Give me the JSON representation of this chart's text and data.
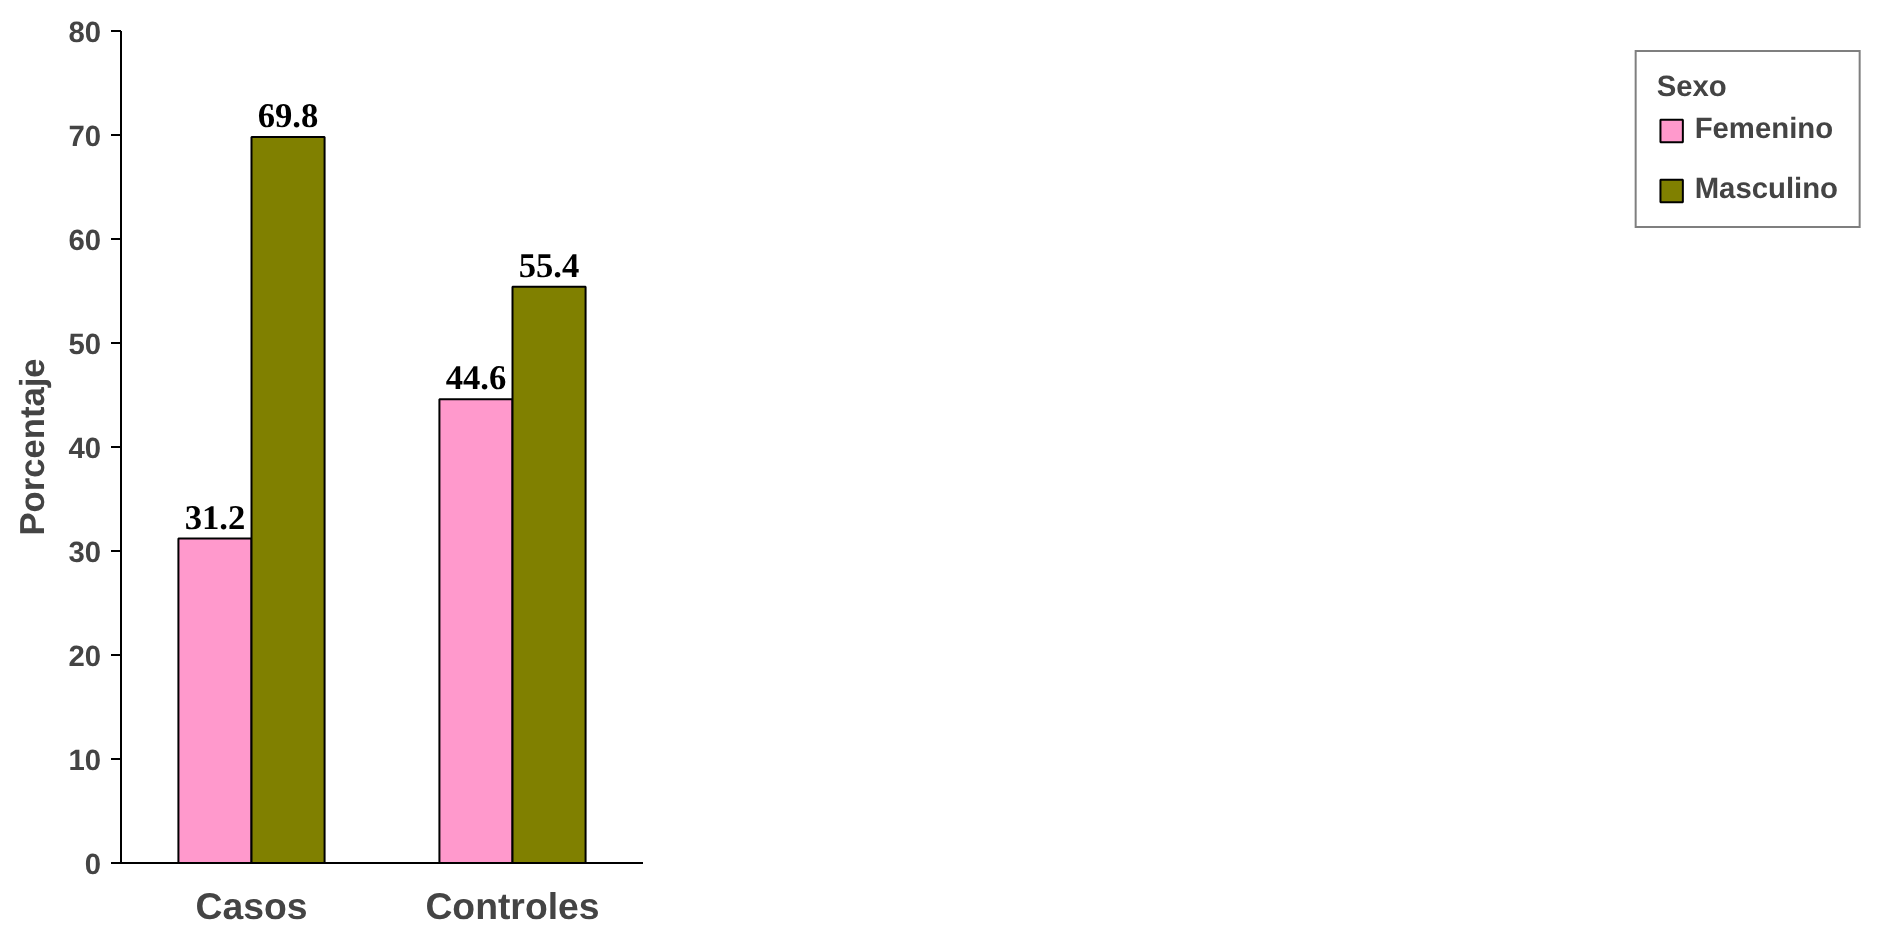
{
  "chart_data": {
    "type": "bar",
    "ylabel": "Porcentaje",
    "legend_title": "Sexo",
    "categories": [
      "Casos",
      "Controles"
    ],
    "series": [
      {
        "name": "Femenino",
        "color": "#ff99cc",
        "values": [
          31.2,
          44.6
        ]
      },
      {
        "name": "Masculino",
        "color": "#808000",
        "values": [
          69.8,
          55.4
        ]
      }
    ],
    "ylim": [
      0,
      80
    ],
    "yticks": [
      0,
      10,
      20,
      30,
      40,
      50,
      60,
      70,
      80
    ],
    "grid": false,
    "legend": "right",
    "data_labels": true
  }
}
